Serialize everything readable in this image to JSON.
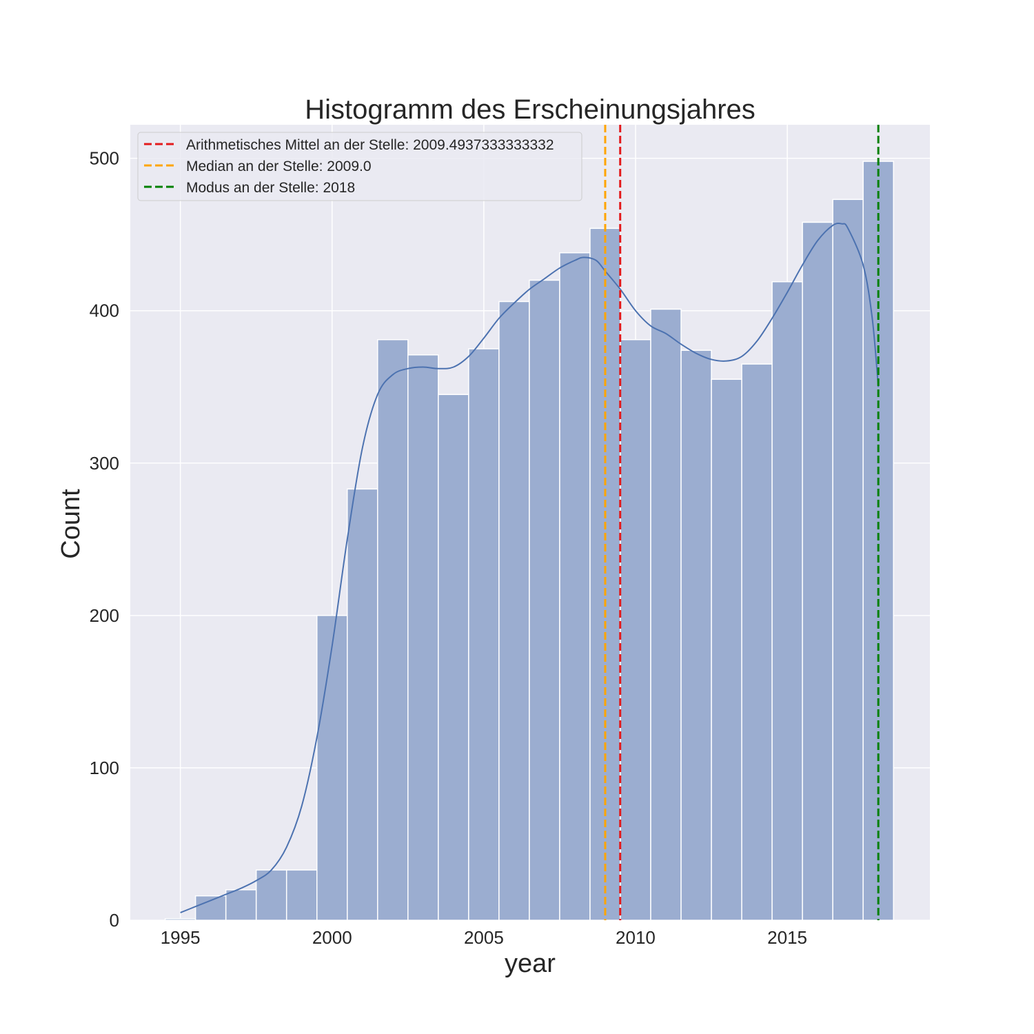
{
  "chart_data": {
    "type": "bar",
    "title": "Histogramm des Erscheinungsjahres",
    "xlabel": "year",
    "ylabel": "Count",
    "xlim": [
      1993.35,
      2019.7
    ],
    "ylim": [
      0,
      522
    ],
    "xticks": [
      1995,
      2000,
      2005,
      2010,
      2015
    ],
    "yticks": [
      0,
      100,
      200,
      300,
      400,
      500
    ],
    "grid": true,
    "bin_width": 1,
    "bins": [
      {
        "x": 1995,
        "count": 1
      },
      {
        "x": 1996,
        "count": 16
      },
      {
        "x": 1997,
        "count": 20
      },
      {
        "x": 1998,
        "count": 33
      },
      {
        "x": 1999,
        "count": 33
      },
      {
        "x": 2000,
        "count": 200
      },
      {
        "x": 2001,
        "count": 283
      },
      {
        "x": 2002,
        "count": 381
      },
      {
        "x": 2003,
        "count": 371
      },
      {
        "x": 2004,
        "count": 345
      },
      {
        "x": 2005,
        "count": 375
      },
      {
        "x": 2006,
        "count": 406
      },
      {
        "x": 2007,
        "count": 420
      },
      {
        "x": 2008,
        "count": 438
      },
      {
        "x": 2009,
        "count": 454
      },
      {
        "x": 2010,
        "count": 381
      },
      {
        "x": 2011,
        "count": 401
      },
      {
        "x": 2012,
        "count": 374
      },
      {
        "x": 2013,
        "count": 355
      },
      {
        "x": 2014,
        "count": 365
      },
      {
        "x": 2015,
        "count": 419
      },
      {
        "x": 2016,
        "count": 458
      },
      {
        "x": 2017,
        "count": 473
      },
      {
        "x": 2018,
        "count": 498
      }
    ],
    "kde": [
      [
        1995.0,
        5
      ],
      [
        1995.5,
        9
      ],
      [
        1996.0,
        13
      ],
      [
        1996.5,
        17
      ],
      [
        1997.0,
        21
      ],
      [
        1997.5,
        26
      ],
      [
        1998.0,
        33
      ],
      [
        1998.5,
        48
      ],
      [
        1999.0,
        75
      ],
      [
        1999.5,
        120
      ],
      [
        2000.0,
        180
      ],
      [
        2000.5,
        250
      ],
      [
        2001.0,
        310
      ],
      [
        2001.5,
        345
      ],
      [
        2002.0,
        358
      ],
      [
        2002.5,
        362
      ],
      [
        2003.0,
        363
      ],
      [
        2003.5,
        362
      ],
      [
        2004.0,
        363
      ],
      [
        2004.5,
        370
      ],
      [
        2005.0,
        382
      ],
      [
        2005.5,
        395
      ],
      [
        2006.0,
        405
      ],
      [
        2006.5,
        414
      ],
      [
        2007.0,
        421
      ],
      [
        2007.5,
        428
      ],
      [
        2008.0,
        433
      ],
      [
        2008.3,
        435
      ],
      [
        2008.7,
        433
      ],
      [
        2009.0,
        426
      ],
      [
        2009.5,
        414
      ],
      [
        2010.0,
        400
      ],
      [
        2010.5,
        390
      ],
      [
        2011.0,
        385
      ],
      [
        2011.5,
        378
      ],
      [
        2012.0,
        372
      ],
      [
        2012.5,
        368
      ],
      [
        2013.0,
        367
      ],
      [
        2013.5,
        370
      ],
      [
        2014.0,
        380
      ],
      [
        2014.5,
        395
      ],
      [
        2015.0,
        412
      ],
      [
        2015.5,
        430
      ],
      [
        2016.0,
        446
      ],
      [
        2016.5,
        456
      ],
      [
        2016.8,
        457
      ],
      [
        2017.0,
        454
      ],
      [
        2017.5,
        430
      ],
      [
        2017.8,
        395
      ],
      [
        2018.0,
        350
      ]
    ],
    "vlines": [
      {
        "label": "Arithmetisches Mittel an der Stelle: 2009.4937333333332",
        "x": 2009.4937333333332,
        "color": "#e31a1c"
      },
      {
        "label": "Median an der Stelle: 2009.0",
        "x": 2009.0,
        "color": "#ffa500"
      },
      {
        "label": "Modus an der Stelle: 2018",
        "x": 2018,
        "color": "#008000"
      }
    ],
    "legend": {
      "placement": "top-left"
    },
    "colors": {
      "background": "#eaeaf2",
      "bar": "#9badd0",
      "kde": "#4c72b0",
      "grid": "#ffffff"
    }
  }
}
